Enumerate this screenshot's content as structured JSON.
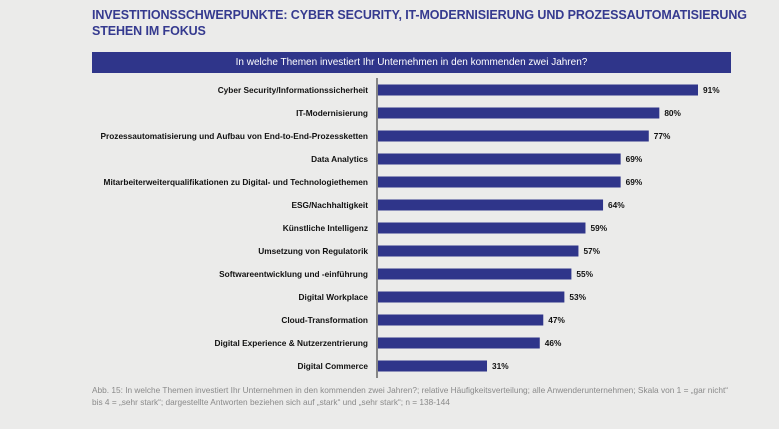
{
  "title": "INVESTITIONSSCHWERPUNKTE: CYBER SECURITY, IT-MODERNISIERUNG UND PROZESSAUTOMATISIERUNG STEHEN IM FOKUS",
  "caption": "Abb. 15: In welche Themen investiert Ihr Unternehmen in den kommenden zwei Jahren?; relative Häufigkeitsverteilung; alle Anwenderunternehmen; Skala von 1 = „gar nicht“ bis 4 = „sehr stark“; dargestellte Antworten beziehen sich auf „stark“ und „sehr stark“; n = 138-144",
  "chart_data": {
    "type": "bar",
    "orientation": "horizontal",
    "title": "In welche Themen investiert Ihr Unternehmen in den kommenden zwei Jahren?",
    "categories": [
      "Cyber Security/Informationssicherheit",
      "IT-Modernisierung",
      "Prozessautomatisierung und Aufbau von End-to-End-Prozessketten",
      "Data Analytics",
      "Mitarbeiterweiterqualifikationen zu Digital- und Technologiethemen",
      "ESG/Nachhaltigkeit",
      "Künstliche Intelligenz",
      "Umsetzung von Regulatorik",
      "Softwareentwicklung und -einführung",
      "Digital Workplace",
      "Cloud-Transformation",
      "Digital Experience & Nutzerzentrierung",
      "Digital Commerce"
    ],
    "values": [
      91,
      80,
      77,
      69,
      69,
      64,
      59,
      57,
      55,
      53,
      47,
      46,
      31
    ],
    "unit": "%",
    "bar_color": "#2f358a",
    "grid": false
  }
}
